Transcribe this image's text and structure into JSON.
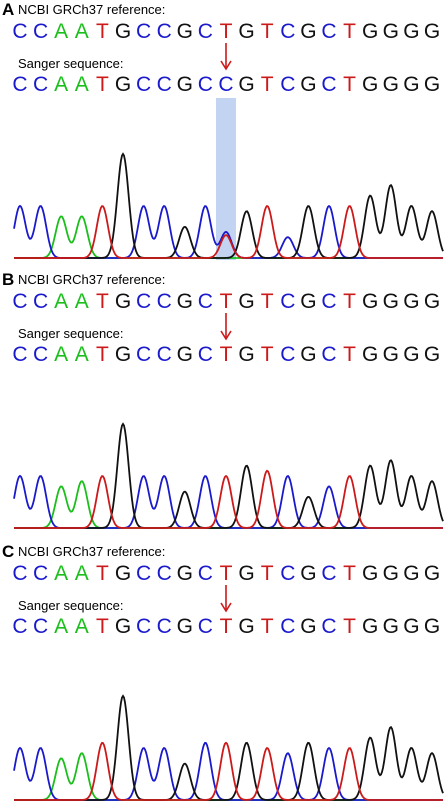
{
  "colors": {
    "A": "#1bbf1b",
    "C": "#1a1acc",
    "G": "#111111",
    "T": "#cc1a1a",
    "arrow": "#cc1a1a",
    "highlight": "#9dbde8"
  },
  "panels": [
    {
      "letter": "A",
      "reference_label": "NCBI GRCh37 reference:",
      "sanger_label": "Sanger sequence:",
      "reference_sequence": [
        "C",
        "C",
        "A",
        "A",
        "T",
        "G",
        "C",
        "C",
        "G",
        "C",
        "T",
        "G",
        "T",
        "C",
        "G",
        "C",
        "T",
        "G",
        "G",
        "G",
        "G"
      ],
      "sanger_sequence": [
        "C",
        "C",
        "A",
        "A",
        "T",
        "G",
        "C",
        "C",
        "G",
        "C",
        "C",
        "G",
        "T",
        "C",
        "G",
        "C",
        "T",
        "G",
        "G",
        "G",
        "G"
      ],
      "variant_position": 10,
      "highlight_variant": true,
      "peak_heights": [
        0.5,
        0.5,
        0.4,
        0.4,
        0.5,
        1.0,
        0.5,
        0.5,
        0.3,
        0.5,
        0.25,
        0.45,
        0.5,
        0.2,
        0.5,
        0.5,
        0.5,
        0.6,
        0.7,
        0.5,
        0.45
      ]
    },
    {
      "letter": "B",
      "reference_label": "NCBI GRCh37 reference:",
      "sanger_label": "Sanger sequence:",
      "reference_sequence": [
        "C",
        "C",
        "A",
        "A",
        "T",
        "G",
        "C",
        "C",
        "G",
        "C",
        "T",
        "G",
        "T",
        "C",
        "G",
        "C",
        "T",
        "G",
        "G",
        "G",
        "G"
      ],
      "sanger_sequence": [
        "C",
        "C",
        "A",
        "A",
        "T",
        "G",
        "C",
        "C",
        "G",
        "C",
        "T",
        "G",
        "T",
        "C",
        "G",
        "C",
        "T",
        "G",
        "G",
        "G",
        "G"
      ],
      "variant_position": 10,
      "highlight_variant": false,
      "peak_heights": [
        0.5,
        0.5,
        0.4,
        0.45,
        0.5,
        1.0,
        0.5,
        0.5,
        0.35,
        0.5,
        0.5,
        0.6,
        0.55,
        0.5,
        0.3,
        0.4,
        0.5,
        0.6,
        0.65,
        0.5,
        0.45
      ]
    },
    {
      "letter": "C",
      "reference_label": "NCBI GRCh37 reference:",
      "sanger_label": "Sanger sequence:",
      "reference_sequence": [
        "C",
        "C",
        "A",
        "A",
        "T",
        "G",
        "C",
        "C",
        "G",
        "C",
        "T",
        "G",
        "T",
        "C",
        "G",
        "C",
        "T",
        "G",
        "G",
        "G",
        "G"
      ],
      "sanger_sequence": [
        "C",
        "C",
        "A",
        "A",
        "T",
        "G",
        "C",
        "C",
        "G",
        "C",
        "T",
        "G",
        "T",
        "C",
        "G",
        "C",
        "T",
        "G",
        "G",
        "G",
        "G"
      ],
      "variant_position": 10,
      "highlight_variant": false,
      "peak_heights": [
        0.5,
        0.5,
        0.4,
        0.45,
        0.55,
        1.0,
        0.5,
        0.5,
        0.35,
        0.55,
        0.55,
        0.55,
        0.5,
        0.45,
        0.55,
        0.5,
        0.5,
        0.6,
        0.7,
        0.5,
        0.45
      ]
    }
  ]
}
